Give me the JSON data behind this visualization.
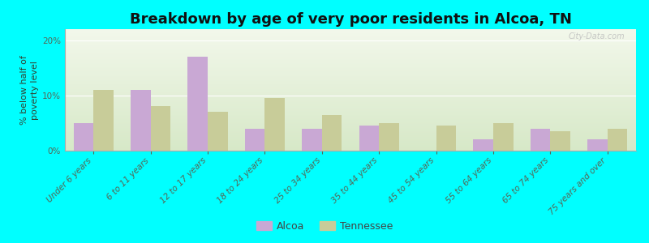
{
  "categories": [
    "Under 6 years",
    "6 to 11 years",
    "12 to 17 years",
    "18 to 24 years",
    "25 to 34 years",
    "35 to 44 years",
    "45 to 54 years",
    "55 to 64 years",
    "65 to 74 years",
    "75 years and over"
  ],
  "alcoa_values": [
    5.0,
    11.0,
    17.0,
    4.0,
    4.0,
    4.5,
    0.0,
    2.0,
    4.0,
    2.0
  ],
  "tn_values": [
    11.0,
    8.0,
    7.0,
    9.5,
    6.5,
    5.0,
    4.5,
    5.0,
    3.5,
    4.0
  ],
  "alcoa_color": "#c9a8d4",
  "tn_color": "#c8cc99",
  "title": "Breakdown by age of very poor residents in Alcoa, TN",
  "ylabel": "% below half of\npoverty level",
  "ylim": [
    0,
    22
  ],
  "yticks": [
    0,
    10,
    20
  ],
  "ytick_labels": [
    "0%",
    "10%",
    "20%"
  ],
  "background_outer": "#00ffff",
  "legend_alcoa": "Alcoa",
  "legend_tn": "Tennessee",
  "title_fontsize": 13,
  "axis_label_fontsize": 8,
  "tick_fontsize": 7.5
}
